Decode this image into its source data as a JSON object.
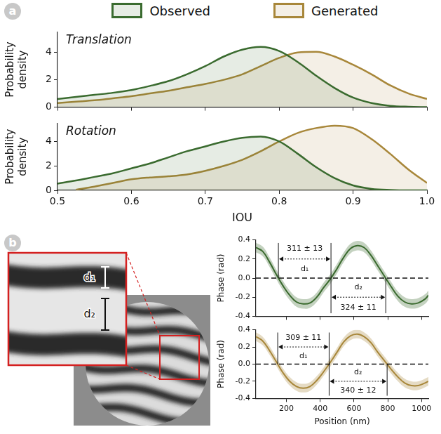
{
  "panel_labels": [
    "a",
    "b"
  ],
  "image": {
    "labels": [
      "d₁",
      "d₂"
    ]
  },
  "chart_data": [
    {
      "type": "line",
      "title": "Translation",
      "y_label": "Probability density",
      "legend": "top",
      "grid": false,
      "tick_labels": "y",
      "xlim": [
        0.5,
        1.0
      ],
      "xticks": [
        0.5,
        0.6,
        0.7,
        0.8,
        0.9,
        {
          "value": 1.0,
          "label": "1.0"
        }
      ],
      "ylim": [
        0,
        5.5
      ],
      "yticks": [
        0,
        2,
        4
      ],
      "x": [
        0.5,
        0.525,
        0.55,
        0.575,
        0.6,
        0.625,
        0.65,
        0.675,
        0.7,
        0.725,
        0.75,
        0.775,
        0.8,
        0.825,
        0.85,
        0.875,
        0.9,
        0.925,
        0.95,
        0.975,
        1.0
      ],
      "series": [
        {
          "name": "Observed",
          "color": "#3a6b2f",
          "values": [
            0.6,
            0.75,
            0.9,
            1.05,
            1.25,
            1.55,
            1.9,
            2.4,
            3.0,
            3.7,
            4.2,
            4.4,
            4.1,
            3.3,
            2.3,
            1.4,
            0.7,
            0.3,
            0.1,
            0.03,
            0.0
          ]
        },
        {
          "name": "Generated",
          "color": "#a8873a",
          "values": [
            0.3,
            0.4,
            0.5,
            0.65,
            0.8,
            1.0,
            1.2,
            1.45,
            1.7,
            2.0,
            2.4,
            3.0,
            3.6,
            4.0,
            4.05,
            3.7,
            3.1,
            2.4,
            1.6,
            1.0,
            0.6
          ]
        }
      ]
    },
    {
      "type": "line",
      "title": "Rotation",
      "x_label": "IOU",
      "y_label": "Probability density",
      "grid": false,
      "xlim": [
        0.5,
        1.0
      ],
      "xticks": [
        0.5,
        0.6,
        0.7,
        0.8,
        0.9,
        {
          "value": 1.0,
          "label": "1.0"
        }
      ],
      "ylim": [
        0,
        5.5
      ],
      "yticks": [
        0,
        2,
        4
      ],
      "x": [
        0.5,
        0.525,
        0.55,
        0.575,
        0.6,
        0.625,
        0.65,
        0.675,
        0.7,
        0.725,
        0.75,
        0.775,
        0.8,
        0.825,
        0.85,
        0.875,
        0.9,
        0.925,
        0.95,
        0.975,
        1.0
      ],
      "series": [
        {
          "color": "#3a6b2f",
          "values": [
            0.55,
            0.8,
            1.1,
            1.4,
            1.8,
            2.2,
            2.7,
            3.2,
            3.6,
            4.0,
            4.3,
            4.4,
            4.0,
            3.0,
            1.9,
            1.0,
            0.4,
            0.12,
            0.03,
            0.0,
            0.0
          ]
        },
        {
          "color": "#a8873a",
          "values": [
            null,
            0.05,
            0.3,
            0.6,
            0.9,
            1.05,
            1.15,
            1.3,
            1.6,
            2.0,
            2.5,
            3.2,
            4.0,
            4.7,
            5.1,
            5.3,
            5.1,
            4.2,
            3.0,
            1.7,
            0.6
          ]
        }
      ]
    },
    {
      "type": "line",
      "y_label": "Phase (rad)",
      "grid": false,
      "tick_labels": "y",
      "xlim": [
        20,
        1040
      ],
      "xticks": [
        200,
        400,
        600,
        800,
        1000
      ],
      "ylim": [
        -0.4,
        0.4
      ],
      "yticks": [
        -0.4,
        -0.2,
        {
          "value": 0,
          "label": "0.0"
        },
        0.2,
        0.4
      ],
      "x": [
        20,
        60,
        100,
        140,
        180,
        220,
        260,
        300,
        340,
        380,
        420,
        460,
        500,
        540,
        580,
        620,
        660,
        700,
        740,
        780,
        820,
        860,
        900,
        940,
        980,
        1020,
        1040
      ],
      "series": [
        {
          "color": "#3a6b2f",
          "values": [
            0.32,
            0.28,
            0.17,
            0.04,
            -0.08,
            -0.18,
            -0.25,
            -0.27,
            -0.26,
            -0.2,
            -0.1,
            -0.01,
            0.1,
            0.22,
            0.31,
            0.34,
            0.32,
            0.24,
            0.13,
            0.02,
            -0.09,
            -0.19,
            -0.25,
            -0.27,
            -0.26,
            -0.22,
            -0.18
          ],
          "errors": [
            0.05,
            0.05,
            0.05,
            0.05,
            0.05,
            0.05,
            0.05,
            0.05,
            0.05,
            0.05,
            0.05,
            0.05,
            0.05,
            0.05,
            0.05,
            0.05,
            0.05,
            0.05,
            0.05,
            0.05,
            0.05,
            0.05,
            0.05,
            0.05,
            0.05,
            0.05,
            0.05
          ]
        }
      ],
      "zero_line": {
        "y": 0,
        "line_style": "dashed"
      },
      "annotations": [
        {
          "label": "d₁",
          "text": "311 ± 13",
          "x": [
            153,
            464
          ]
        },
        {
          "label": "d₂",
          "text": "324 ± 11",
          "x": [
            464,
            788
          ]
        }
      ]
    },
    {
      "type": "line",
      "x_label": "Position (nm)",
      "y_label": "Phase (rad)",
      "grid": false,
      "xlim": [
        20,
        1040
      ],
      "xticks": [
        200,
        400,
        600,
        800,
        1000
      ],
      "ylim": [
        -0.4,
        0.4
      ],
      "yticks": [
        -0.4,
        -0.2,
        {
          "value": 0,
          "label": "0.0"
        },
        0.2,
        0.4
      ],
      "x": [
        20,
        60,
        100,
        140,
        180,
        220,
        260,
        300,
        340,
        380,
        420,
        460,
        500,
        540,
        580,
        620,
        660,
        700,
        740,
        780,
        820,
        860,
        900,
        940,
        980,
        1020,
        1040
      ],
      "series": [
        {
          "color": "#a8873a",
          "values": [
            0.32,
            0.27,
            0.16,
            0.03,
            -0.1,
            -0.2,
            -0.26,
            -0.28,
            -0.26,
            -0.19,
            -0.09,
            0.02,
            0.14,
            0.26,
            0.33,
            0.35,
            0.32,
            0.25,
            0.14,
            0.04,
            -0.06,
            -0.15,
            -0.22,
            -0.25,
            -0.25,
            -0.22,
            -0.2
          ],
          "errors": [
            0.05,
            0.05,
            0.05,
            0.05,
            0.05,
            0.05,
            0.05,
            0.05,
            0.05,
            0.05,
            0.05,
            0.05,
            0.05,
            0.05,
            0.05,
            0.05,
            0.05,
            0.05,
            0.05,
            0.05,
            0.05,
            0.05,
            0.05,
            0.05,
            0.05,
            0.05,
            0.05
          ]
        }
      ],
      "zero_line": {
        "y": 0,
        "line_style": "dashed"
      },
      "annotations": [
        {
          "label": "d₁",
          "text": "309 ± 11",
          "x": [
            149,
            453
          ]
        },
        {
          "label": "d₂",
          "text": "340 ± 12",
          "x": [
            453,
            796
          ]
        }
      ]
    }
  ]
}
